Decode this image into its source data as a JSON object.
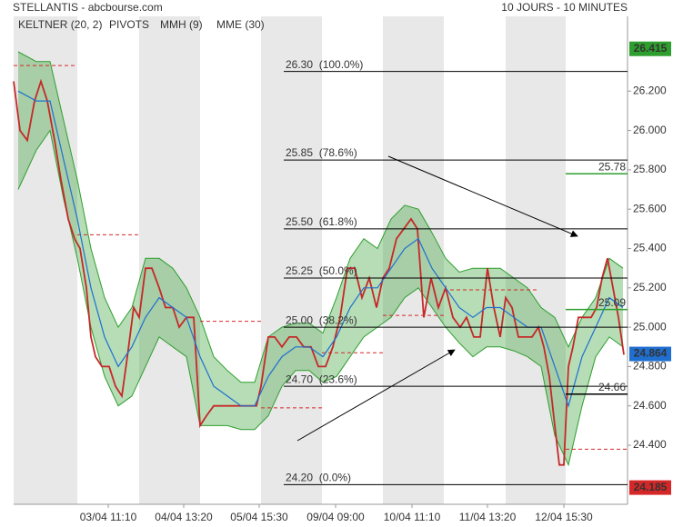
{
  "chart_data": {
    "type": "line",
    "title": "STELLANTIS - abcbourse.com",
    "subtitle": "10 JOURS - 10 MINUTES",
    "xlim": [
      0,
      675
    ],
    "ylim": [
      24.1,
      26.58
    ],
    "xticks": [
      {
        "value": 104,
        "label": "03/04 11:10"
      },
      {
        "value": 187,
        "label": "04/04 13:20"
      },
      {
        "value": 270,
        "label": "05/04 15:30"
      },
      {
        "value": 354,
        "label": "09/04 09:00"
      },
      {
        "value": 438,
        "label": "10/04 11:10"
      },
      {
        "value": 521,
        "label": "11/04 13:20"
      },
      {
        "value": 605,
        "label": "12/04 15:30"
      }
    ],
    "yticks": [
      {
        "value": 24.4,
        "label": "24.400"
      },
      {
        "value": 24.6,
        "label": "24.600"
      },
      {
        "value": 24.8,
        "label": "24.800"
      },
      {
        "value": 25.0,
        "label": "25.000"
      },
      {
        "value": 25.2,
        "label": "25.200"
      },
      {
        "value": 25.4,
        "label": "25.400"
      },
      {
        "value": 25.6,
        "label": "25.600"
      },
      {
        "value": 25.8,
        "label": "25.800"
      },
      {
        "value": 26.0,
        "label": "26.000"
      },
      {
        "value": 26.2,
        "label": "26.200"
      }
    ],
    "series": [
      {
        "name": "KELTNER (20, 2)",
        "color": "#2e9e2e",
        "x": [
          5,
          25,
          40,
          55,
          70,
          85,
          100,
          115,
          130,
          145,
          160,
          175,
          190,
          205,
          220,
          235,
          250,
          265,
          280,
          295,
          310,
          325,
          340,
          355,
          370,
          385,
          400,
          415,
          430,
          445,
          460,
          475,
          490,
          505,
          520,
          535,
          550,
          565,
          580,
          595,
          610,
          625,
          640,
          655,
          670
        ],
        "upper": [
          26.4,
          26.35,
          26.35,
          26.05,
          25.75,
          25.4,
          25.15,
          25.0,
          25.1,
          25.35,
          25.35,
          25.3,
          25.2,
          25.05,
          24.85,
          24.78,
          24.72,
          24.72,
          24.95,
          25.0,
          25.02,
          25.02,
          24.97,
          25.15,
          25.35,
          25.45,
          25.4,
          25.55,
          25.62,
          25.6,
          25.48,
          25.35,
          25.28,
          25.3,
          25.3,
          25.3,
          25.25,
          25.2,
          25.1,
          25.05,
          24.9,
          25.05,
          25.15,
          25.35,
          25.3
        ],
        "lower": [
          25.7,
          25.9,
          26.0,
          25.65,
          25.35,
          25.0,
          24.75,
          24.6,
          24.65,
          24.8,
          24.95,
          24.9,
          24.85,
          24.5,
          24.5,
          24.5,
          24.48,
          24.48,
          24.55,
          24.7,
          24.78,
          24.78,
          24.72,
          24.75,
          24.85,
          24.95,
          25.0,
          25.05,
          25.15,
          25.2,
          25.1,
          25.0,
          24.92,
          24.85,
          24.9,
          24.9,
          24.88,
          24.85,
          24.8,
          24.45,
          24.3,
          24.6,
          24.85,
          24.95,
          24.9
        ]
      },
      {
        "name": "PIVOTS",
        "color": "#d62728",
        "x": [
          0,
          70,
          205,
          272,
          339,
          406,
          473,
          607
        ],
        "x_end": [
          70,
          138,
          272,
          339,
          406,
          473,
          575,
          675
        ],
        "values": [
          26.33,
          25.47,
          25.03,
          24.59,
          24.87,
          25.06,
          25.19,
          24.38
        ]
      },
      {
        "name": "MMH (9)",
        "color": "#c62828",
        "x": [
          0,
          7,
          15,
          23,
          30,
          37,
          45,
          52,
          60,
          67,
          73,
          80,
          85,
          90,
          97,
          105,
          112,
          119,
          125,
          132,
          138,
          145,
          152,
          160,
          167,
          175,
          182,
          190,
          198,
          205,
          212,
          220,
          228,
          235,
          243,
          251,
          260,
          267,
          272,
          280,
          287,
          295,
          303,
          311,
          319,
          327,
          335,
          343,
          351,
          359,
          367,
          375,
          383,
          391,
          399,
          406,
          413,
          421,
          429,
          437,
          444,
          451,
          459,
          467,
          475,
          483,
          491,
          498,
          506,
          513,
          521,
          528,
          535,
          541,
          548,
          555,
          562,
          570,
          577,
          583,
          589,
          595,
          600,
          605,
          610,
          615,
          621,
          627,
          635,
          641,
          647,
          653,
          659,
          665,
          671
        ],
        "values": [
          26.25,
          26.0,
          25.95,
          26.15,
          26.25,
          26.15,
          25.95,
          25.75,
          25.55,
          25.45,
          25.4,
          25.2,
          24.95,
          24.85,
          24.8,
          24.8,
          24.7,
          24.65,
          24.85,
          25.1,
          25.05,
          25.3,
          25.3,
          25.2,
          25.1,
          25.1,
          25.0,
          25.05,
          25.05,
          24.5,
          24.55,
          24.6,
          24.6,
          24.6,
          24.6,
          24.6,
          24.6,
          24.6,
          24.7,
          24.95,
          24.95,
          24.9,
          24.95,
          24.95,
          24.9,
          24.9,
          24.8,
          24.8,
          24.9,
          25.05,
          25.3,
          25.3,
          25.15,
          25.25,
          25.1,
          25.25,
          25.3,
          25.45,
          25.5,
          25.55,
          25.5,
          25.05,
          25.25,
          25.1,
          25.2,
          25.05,
          25.0,
          25.05,
          24.95,
          24.95,
          25.3,
          25.1,
          24.95,
          25.15,
          25.1,
          24.95,
          24.95,
          24.95,
          25.0,
          24.9,
          24.75,
          24.5,
          24.3,
          24.3,
          24.8,
          24.9,
          25.05,
          25.05,
          25.05,
          25.1,
          25.25,
          25.35,
          25.2,
          25.05,
          24.86
        ]
      },
      {
        "name": "MME (30)",
        "color": "#1f6fd1",
        "x": [
          5,
          25,
          40,
          55,
          70,
          85,
          100,
          115,
          130,
          145,
          160,
          175,
          190,
          205,
          220,
          235,
          250,
          265,
          280,
          295,
          310,
          325,
          340,
          355,
          370,
          385,
          400,
          415,
          430,
          445,
          460,
          475,
          490,
          505,
          520,
          535,
          550,
          565,
          580,
          595,
          610,
          625,
          640,
          655,
          670
        ],
        "values": [
          26.2,
          26.15,
          26.15,
          25.85,
          25.55,
          25.2,
          24.95,
          24.8,
          24.9,
          25.05,
          25.15,
          25.1,
          25.05,
          24.85,
          24.7,
          24.65,
          24.6,
          24.6,
          24.75,
          24.85,
          24.9,
          24.9,
          24.85,
          24.95,
          25.1,
          25.2,
          25.2,
          25.3,
          25.4,
          25.45,
          25.3,
          25.2,
          25.1,
          25.05,
          25.1,
          25.1,
          25.05,
          25.0,
          25.0,
          24.8,
          24.6,
          24.85,
          25.0,
          25.15,
          25.1
        ]
      }
    ],
    "fibonacci": {
      "x": [
        297,
        675
      ],
      "levels": [
        26.3,
        25.85,
        25.5,
        25.25,
        25.0,
        24.7,
        24.2
      ],
      "labels": [
        "26.30  (100.0%)",
        "25.85  (78.6%)",
        "25.50  (61.8%)",
        "25.25  (50.0%)",
        "25.00  (38.2%)",
        "24.70  (23.6%)",
        "24.20  (0.0%)"
      ]
    },
    "levels": {
      "x": [
        607,
        675
      ],
      "items": [
        {
          "value": 25.78,
          "color": "#2e9e2e"
        },
        {
          "value": 25.09,
          "color": "#2e9e2e"
        },
        {
          "value": 24.66,
          "color": "#000000"
        }
      ]
    },
    "price_markers": [
      {
        "value": 26.415,
        "color": "#2e9e2e"
      },
      {
        "value": 24.864,
        "color": "#1f6fd1"
      },
      {
        "value": 24.185,
        "color": "#d62728"
      }
    ]
  }
}
